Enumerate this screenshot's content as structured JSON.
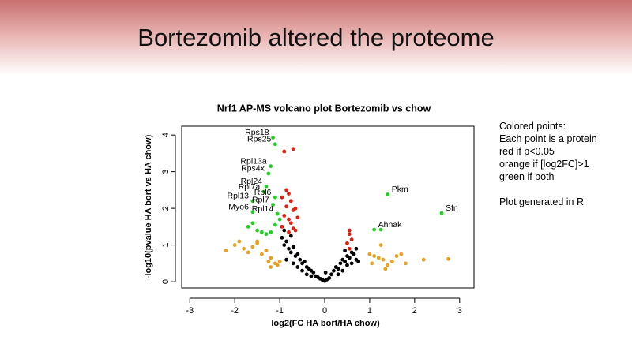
{
  "title": "Bortezomib altered the proteome",
  "chart_data": {
    "type": "scatter",
    "title": "Nrf1 AP-MS volcano plot Bortezomib vs chow",
    "x_label": "log2(FC HA bort/HA chow)",
    "y_label": "-log10(pvalue HA bort vs HA chow)",
    "xlim": [
      -3.18,
      3.32
    ],
    "ylim": [
      -0.17,
      4.24
    ],
    "xticks": [
      -3,
      -2,
      -1,
      0,
      1,
      2,
      3
    ],
    "yticks": [
      0,
      1,
      2,
      3,
      4
    ],
    "series": [
      {
        "color": "#000000",
        "x": [
          -0.95,
          -0.9,
          -0.85,
          -0.8,
          -0.75,
          -0.7,
          -0.65,
          -0.6,
          -0.55,
          -0.5,
          -0.45,
          -0.4,
          -0.35,
          -0.3,
          -0.25,
          -0.2,
          -0.15,
          -0.1,
          -0.05,
          0,
          0.05,
          0.1,
          0.15,
          0.2,
          0.25,
          0.3,
          0.35,
          0.4,
          0.45,
          0.5,
          0.55,
          0.6,
          0.65,
          0.7,
          0.75,
          -0.85,
          -0.7,
          -0.6,
          -0.5,
          -0.4,
          -0.3,
          0.3,
          0.4,
          0.5,
          0.6,
          -0.9,
          -0.75,
          0.45,
          0.7,
          0.02
        ],
        "values": [
          1.2,
          1.0,
          1.1,
          0.9,
          0.8,
          0.95,
          0.7,
          0.75,
          0.6,
          0.5,
          0.55,
          0.4,
          0.35,
          0.3,
          0.25,
          0.15,
          0.12,
          0.08,
          0.05,
          0.02,
          0.06,
          0.1,
          0.2,
          0.3,
          0.4,
          0.35,
          0.5,
          0.6,
          0.55,
          0.7,
          0.65,
          0.8,
          0.75,
          0.9,
          0.55,
          0.6,
          0.5,
          0.4,
          0.3,
          0.2,
          0.15,
          0.2,
          0.3,
          0.45,
          0.5,
          1.4,
          1.25,
          0.85,
          0.6,
          0.25
        ]
      },
      {
        "color": "#e8a020",
        "x": [
          -2.2,
          -2.0,
          -1.9,
          -1.8,
          -1.7,
          -1.6,
          -1.5,
          -1.4,
          -1.3,
          -1.2,
          -1.1,
          -1.05,
          -1.2,
          -1.25,
          -1.0,
          -1.5,
          1.0,
          1.1,
          1.2,
          1.3,
          1.35,
          1.5,
          1.6,
          1.7,
          2.2,
          2.75,
          1.05,
          1.4,
          1.8,
          1.25
        ],
        "values": [
          0.85,
          1.0,
          1.1,
          0.9,
          0.8,
          0.95,
          1.1,
          0.75,
          0.85,
          0.65,
          0.5,
          0.45,
          0.4,
          0.55,
          0.55,
          1.05,
          0.75,
          0.7,
          0.65,
          0.6,
          0.35,
          0.55,
          0.7,
          0.75,
          0.6,
          0.62,
          0.5,
          0.45,
          0.5,
          1.0
        ]
      },
      {
        "color": "#e02010",
        "x": [
          -0.9,
          -0.7,
          -0.85,
          -0.8,
          -0.95,
          -0.75,
          -0.65,
          -0.85,
          -0.7,
          -0.9,
          -0.8,
          -0.6,
          -0.75,
          -0.95,
          -0.7,
          -0.8,
          -0.65,
          0.55,
          0.55,
          0.6,
          0.5,
          0.55
        ],
        "values": [
          3.55,
          3.62,
          2.5,
          2.4,
          2.3,
          2.2,
          2.0,
          2.05,
          1.95,
          1.8,
          1.7,
          1.75,
          1.6,
          1.5,
          1.45,
          1.35,
          1.4,
          1.4,
          1.3,
          1.15,
          1.05,
          0.9
        ]
      },
      {
        "color": "#20d020",
        "x": [
          -1.15,
          -1.1,
          -1.2,
          -1.25,
          -1.3,
          -1.35,
          -1.1,
          -1.6,
          -1.15,
          -1.05,
          -1.6,
          -1.0,
          -1.1,
          -1.6,
          -1.7,
          -1.5,
          -1.2,
          -1.4,
          -1.3,
          1.4,
          2.6,
          1.1,
          1.25
        ],
        "values": [
          3.93,
          3.75,
          3.15,
          2.95,
          2.6,
          2.45,
          2.3,
          2.2,
          2.1,
          1.85,
          1.9,
          1.7,
          1.55,
          1.6,
          1.5,
          1.4,
          1.35,
          1.35,
          1.3,
          2.38,
          1.87,
          1.42,
          1.42
        ],
        "labels": [
          "Rps18",
          "Rps25",
          "Rpl13a",
          "Rps4x",
          "Rpl24",
          "Rpl7a",
          "Rpl6",
          "Rpl13",
          "Rpl7",
          "Rpl14",
          "Myo6",
          null,
          null,
          null,
          null,
          null,
          null,
          null,
          null,
          "Pkm",
          "Sfn",
          "Ahnak",
          null
        ]
      }
    ]
  },
  "notes": [
    "Colored points:",
    "Each point is a protein",
    "red if p<0.05",
    "orange if [log2FC]>1",
    "green if both",
    "",
    "Plot generated in R"
  ]
}
